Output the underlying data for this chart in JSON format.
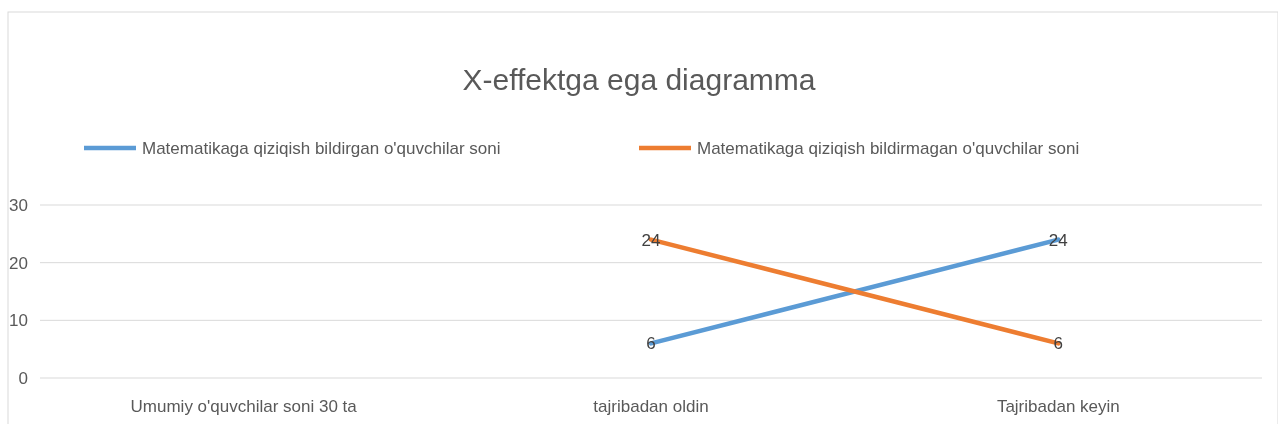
{
  "chart_data": {
    "type": "line",
    "title": "X-effektga ega diagramma",
    "categories": [
      "Umumiy o'quvchilar soni 30 ta",
      "tajribadan oldin",
      "Tajribadan keyin"
    ],
    "series": [
      {
        "name": "Matematikaga qiziqish bildirgan o'quvchilar soni",
        "color": "#5b9bd5",
        "values": [
          null,
          6,
          24
        ]
      },
      {
        "name": "Matematikaga qiziqish bildirmagan o'quvchilar soni",
        "color": "#ed7d31",
        "values": [
          null,
          24,
          6
        ]
      }
    ],
    "ylim": [
      0,
      30
    ],
    "yticks": [
      0,
      10,
      20,
      30
    ],
    "grid": "y",
    "legend": "top",
    "data_labels": true,
    "marker": "none",
    "line_style": "solid"
  }
}
